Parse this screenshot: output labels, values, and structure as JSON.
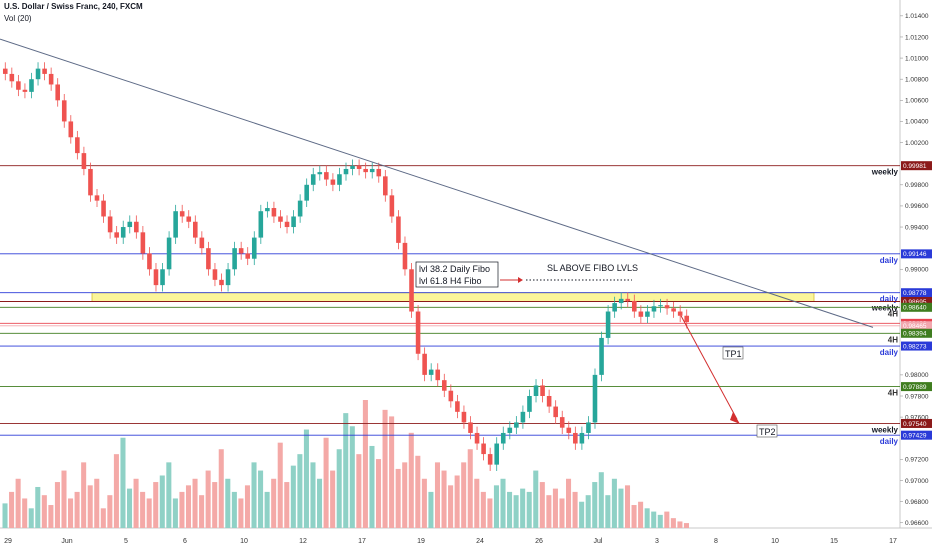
{
  "header": {
    "title": "U.S. Dollar / Swiss Franc, 240, FXCM",
    "volume_label": "Vol (20)"
  },
  "chart_data": {
    "type": "candlestick",
    "symbol": "USDCHF",
    "timeframe": "240",
    "ylim": [
      0.9655,
      1.0155
    ],
    "yticks": [
      {
        "v": 1.014,
        "t": "1.01400"
      },
      {
        "v": 1.012,
        "t": "1.01200"
      },
      {
        "v": 1.01,
        "t": "1.01000"
      },
      {
        "v": 1.008,
        "t": "1.00800"
      },
      {
        "v": 1.006,
        "t": "1.00600"
      },
      {
        "v": 1.004,
        "t": "1.00400"
      },
      {
        "v": 1.002,
        "t": "1.00200"
      },
      {
        "v": 0.998,
        "t": "0.99800"
      },
      {
        "v": 0.996,
        "t": "0.99600"
      },
      {
        "v": 0.994,
        "t": "0.99400"
      },
      {
        "v": 0.99,
        "t": "0.99000"
      },
      {
        "v": 0.98,
        "t": "0.98000"
      },
      {
        "v": 0.978,
        "t": "0.97800"
      },
      {
        "v": 0.976,
        "t": "0.97600"
      },
      {
        "v": 0.972,
        "t": "0.97200"
      },
      {
        "v": 0.97,
        "t": "0.97000"
      },
      {
        "v": 0.968,
        "t": "0.96800"
      },
      {
        "v": 0.966,
        "t": "0.96600"
      }
    ],
    "xticks": [
      "29",
      "Jun",
      "5",
      "6",
      "10",
      "12",
      "17",
      "19",
      "24",
      "26",
      "Jul",
      "3",
      "8",
      "10",
      "15",
      "17"
    ],
    "levels": [
      {
        "price": 0.99981,
        "label": "0.99981",
        "color": "#8b1a1a",
        "name": "weekly",
        "name_color": "#131722"
      },
      {
        "price": 0.99146,
        "label": "0.99146",
        "color": "#2a3ad8",
        "name": "daily",
        "name_color": "#2a3ad8"
      },
      {
        "price": 0.98778,
        "label": "0.98778",
        "color": "#2a3ad8",
        "name": "daily",
        "name_color": "#2a3ad8"
      },
      {
        "price": 0.98695,
        "label": "0.98695",
        "color": "#8b1a1a",
        "name": "weekly",
        "name_color": "#131722"
      },
      {
        "price": 0.9864,
        "label": "0.98640",
        "color": "#3f7d1f",
        "name": "4H",
        "name_color": "#333333"
      },
      {
        "price": 0.98488,
        "label": "0.98488",
        "color": "#e8434f",
        "name": "",
        "name_color": "#333333"
      },
      {
        "price": 0.98465,
        "label": "0.98465",
        "color": "#f2a7ae",
        "name": "",
        "name_color": "#333333"
      },
      {
        "price": 0.98394,
        "label": "0.98394",
        "color": "#3f7d1f",
        "name": "4H",
        "name_color": "#333333"
      },
      {
        "price": 0.98273,
        "label": "0.98273",
        "color": "#2a3ad8",
        "name": "daily",
        "name_color": "#2a3ad8"
      },
      {
        "price": 0.97889,
        "label": "0.97889",
        "color": "#3f7d1f",
        "name": "4H",
        "name_color": "#333333"
      },
      {
        "price": 0.9754,
        "label": "0.97540",
        "color": "#8b1a1a",
        "name": "weekly",
        "name_color": "#131722"
      },
      {
        "price": 0.97429,
        "label": "0.97429",
        "color": "#2a3ad8",
        "name": "daily",
        "name_color": "#2a3ad8"
      }
    ],
    "close_series": [
      1.0085,
      1.0078,
      1.007,
      1.0068,
      1.008,
      1.009,
      1.0085,
      1.0075,
      1.006,
      1.004,
      1.0025,
      1.001,
      0.9995,
      0.997,
      0.9965,
      0.995,
      0.9935,
      0.993,
      0.994,
      0.9945,
      0.9935,
      0.9915,
      0.99,
      0.9885,
      0.99,
      0.993,
      0.9955,
      0.995,
      0.9945,
      0.993,
      0.992,
      0.99,
      0.989,
      0.9885,
      0.99,
      0.992,
      0.9915,
      0.991,
      0.993,
      0.9955,
      0.9958,
      0.995,
      0.9945,
      0.994,
      0.995,
      0.9965,
      0.998,
      0.999,
      0.9992,
      0.9985,
      0.998,
      0.999,
      0.9995,
      0.9998,
      0.9995,
      0.9992,
      0.9995,
      0.9988,
      0.997,
      0.995,
      0.9925,
      0.99,
      0.986,
      0.982,
      0.98,
      0.9805,
      0.9795,
      0.9785,
      0.9775,
      0.9765,
      0.9755,
      0.9745,
      0.9735,
      0.9725,
      0.9715,
      0.9735,
      0.9745,
      0.975,
      0.9755,
      0.9765,
      0.978,
      0.979,
      0.978,
      0.977,
      0.976,
      0.975,
      0.9745,
      0.9735,
      0.9745,
      0.9755,
      0.98,
      0.9835,
      0.986,
      0.9868,
      0.9872,
      0.987,
      0.986,
      0.9855,
      0.986,
      0.9865,
      0.9866,
      0.9863,
      0.986,
      0.9856,
      0.985
    ],
    "volume_series": [
      15,
      22,
      30,
      18,
      12,
      25,
      20,
      14,
      28,
      35,
      18,
      22,
      40,
      26,
      30,
      12,
      20,
      45,
      55,
      24,
      30,
      22,
      18,
      28,
      32,
      40,
      18,
      22,
      26,
      30,
      20,
      35,
      28,
      48,
      30,
      22,
      18,
      26,
      40,
      35,
      22,
      30,
      52,
      28,
      38,
      45,
      60,
      40,
      30,
      55,
      35,
      48,
      70,
      62,
      45,
      78,
      50,
      42,
      72,
      68,
      36,
      40,
      58,
      44,
      30,
      22,
      40,
      35,
      26,
      32,
      40,
      48,
      30,
      22,
      18,
      26,
      30,
      22,
      20,
      24,
      22,
      35,
      28,
      20,
      24,
      18,
      30,
      22,
      16,
      20,
      28,
      34,
      20,
      30,
      24,
      26,
      14,
      16,
      12,
      10,
      8,
      10,
      6,
      4,
      3
    ],
    "annotations": {
      "fibo_line1": "lvl 38.2  Daily Fibo",
      "fibo_line2": "lvl 61.8  H4 Fibo",
      "sl_label": "SL ABOVE FIBO LVLS",
      "tp1": "TP1",
      "tp2": "TP2"
    },
    "fibo_zone": [
      0.98695,
      0.98778
    ],
    "trendline": [
      [
        0,
        1.0118
      ],
      [
        0.97,
        0.9845
      ]
    ],
    "colors": {
      "up": "#26a69a",
      "down": "#ef5350",
      "zone": "#fbf59a",
      "zone_border": "#d8c233",
      "trend": "#5d6a86",
      "arrow": "#d32f2f"
    }
  }
}
